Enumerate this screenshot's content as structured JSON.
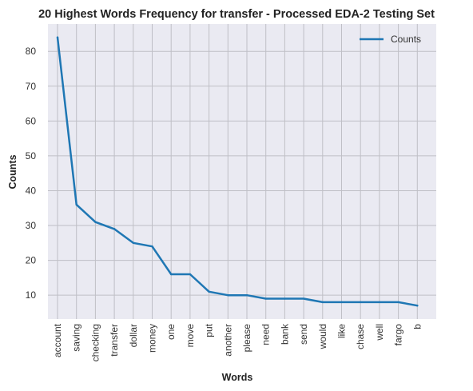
{
  "chart_data": {
    "type": "line",
    "title": "20 Highest Words Frequency for transfer - Processed EDA-2 Testing Set",
    "xlabel": "Words",
    "ylabel": "Counts",
    "categories": [
      "account",
      "saving",
      "checking",
      "transfer",
      "dollar",
      "money",
      "one",
      "move",
      "put",
      "another",
      "please",
      "need",
      "bank",
      "send",
      "would",
      "like",
      "chase",
      "well",
      "fargo",
      "b"
    ],
    "series": [
      {
        "name": "Counts",
        "values": [
          84,
          36,
          31,
          29,
          25,
          24,
          16,
          16,
          11,
          10,
          10,
          9,
          9,
          9,
          8,
          8,
          8,
          8,
          8,
          7
        ]
      }
    ],
    "yticks": [
      10,
      20,
      30,
      40,
      50,
      60,
      70,
      80
    ],
    "ylim": [
      3.15,
      87.85
    ],
    "grid": true,
    "legend": "top-right",
    "colors": {
      "line": "#1f77b4",
      "background": "#eaeaf2",
      "grid": "#bfbfc6"
    }
  }
}
